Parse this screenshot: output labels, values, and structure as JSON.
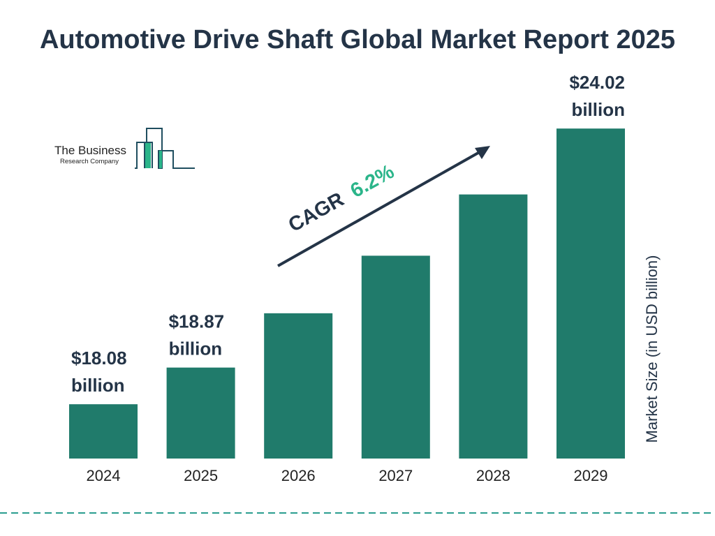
{
  "chart_data": {
    "type": "bar",
    "title": "Automotive Drive Shaft Global Market Report 2025",
    "categories": [
      "2024",
      "2025",
      "2026",
      "2027",
      "2028",
      "2029"
    ],
    "values": [
      18.08,
      18.87,
      20.04,
      21.28,
      22.6,
      24.02
    ],
    "value_labels": {
      "0": "$18.08 billion",
      "1": "$18.87 billion",
      "5": "$24.02 billion"
    },
    "ylabel": "Market Size (in USD billion)",
    "annotation": {
      "label": "CAGR",
      "value": "6.2%"
    },
    "grid": false,
    "colors": {
      "bar": "#207b6b",
      "text": "#243447",
      "cagr": "#2bb58a",
      "dashed_line": "#2a9d8f"
    }
  },
  "logo": {
    "line1": "The Business",
    "line2": "Research Company"
  }
}
